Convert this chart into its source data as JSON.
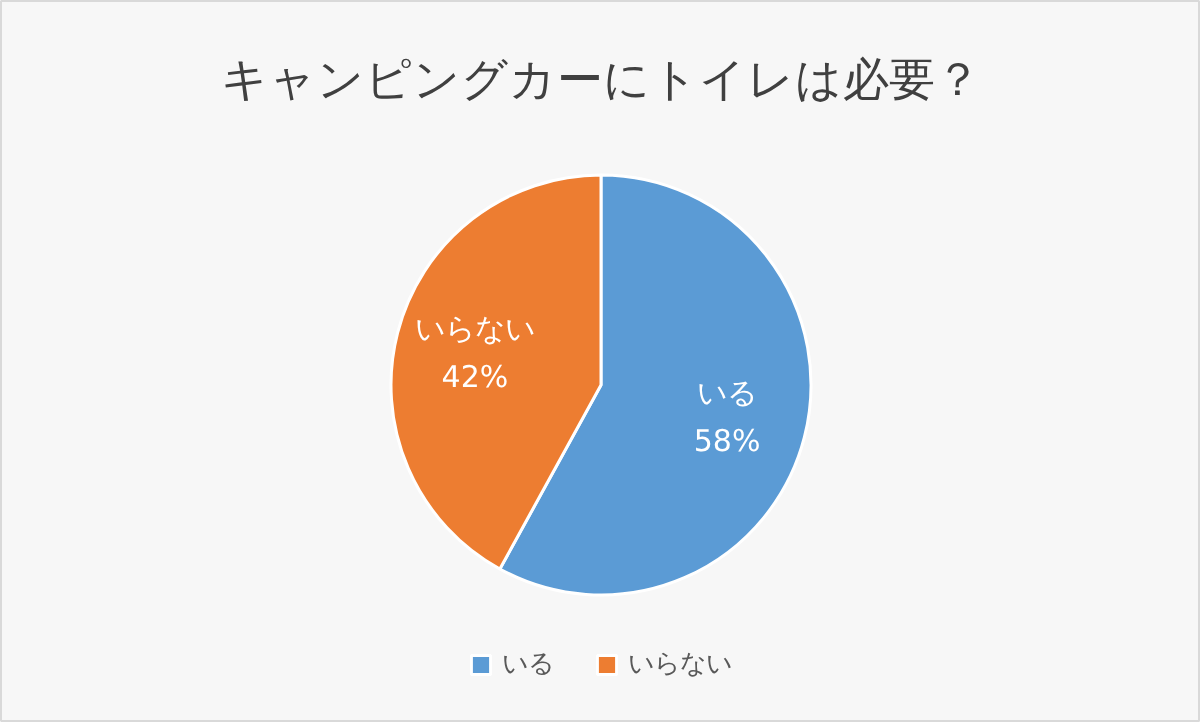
{
  "chart_data": {
    "type": "pie",
    "title": "キャンピングカーにトイレは必要？",
    "categories": [
      "いる",
      "いらない"
    ],
    "values": [
      58,
      42
    ],
    "colors": [
      "#5b9bd5",
      "#ed7d31"
    ],
    "value_labels": [
      "58%",
      "42%"
    ],
    "legend": "bottom"
  }
}
